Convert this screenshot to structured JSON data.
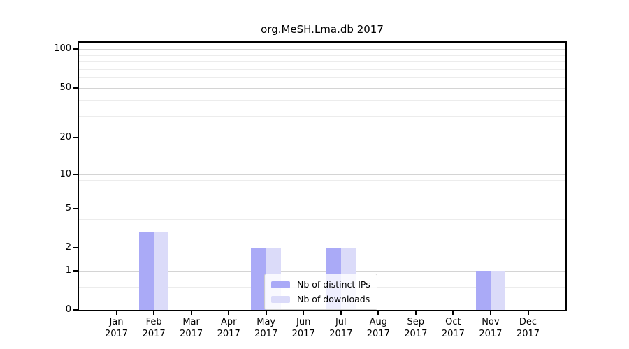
{
  "chart_data": {
    "type": "bar",
    "title": "org.MeSH.Lma.db 2017",
    "categories": [
      "Jan 2017",
      "Feb 2017",
      "Mar 2017",
      "Apr 2017",
      "May 2017",
      "Jun 2017",
      "Jul 2017",
      "Aug 2017",
      "Sep 2017",
      "Oct 2017",
      "Nov 2017",
      "Dec 2017"
    ],
    "series": [
      {
        "name": "Nb of distinct IPs",
        "key": "distinct-ips",
        "color": "#aaaaf7",
        "values": [
          0,
          3,
          0,
          0,
          2,
          0,
          2,
          0,
          0,
          0,
          1,
          0
        ]
      },
      {
        "name": "Nb of downloads",
        "key": "downloads",
        "color": "#dbdbf9",
        "values": [
          0,
          3,
          0,
          0,
          2,
          0,
          2,
          0,
          0,
          0,
          1,
          0
        ]
      }
    ],
    "xlabel": "",
    "ylabel": "",
    "yscale": "log1p",
    "ylim": [
      0,
      112
    ],
    "yticks": [
      0,
      1,
      2,
      5,
      10,
      20,
      50,
      100
    ],
    "yticks_minor": [
      0.5,
      3,
      4,
      6,
      7,
      8,
      9,
      30,
      40,
      60,
      70,
      80,
      90
    ],
    "grid": true,
    "legend_position": "lower-center-inside"
  },
  "style": {
    "grid_major_color": "#d4d4d4",
    "grid_minor_color": "#ececec",
    "axis_color": "#000000",
    "legend_border_color": "#cccccc"
  }
}
